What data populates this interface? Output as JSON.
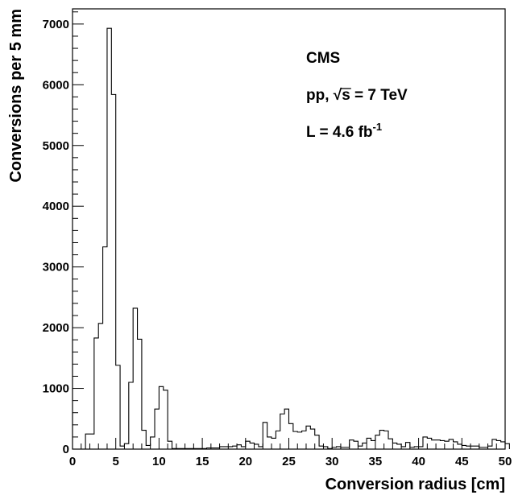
{
  "chart_data": {
    "type": "histogram",
    "xlabel": "Conversion radius [cm]",
    "ylabel": "Conversions per 5 mm",
    "xlim": [
      0,
      50
    ],
    "ylim": [
      0,
      7250
    ],
    "bin_width": 0.5,
    "x_ticks": [
      0,
      5,
      10,
      15,
      20,
      25,
      30,
      35,
      40,
      45,
      50
    ],
    "y_ticks": [
      0,
      1000,
      2000,
      3000,
      4000,
      5000,
      6000,
      7000
    ],
    "grid": false,
    "annotations": {
      "experiment": "CMS",
      "process_prefix": "pp, ",
      "sqrt_s_symbol": "√s",
      "energy": " = 7 TeV",
      "luminosity_prefix": "L = 4.6 fb",
      "luminosity_exponent": "-1"
    },
    "bin_edges_start": 1.5,
    "values": [
      250,
      250,
      1830,
      2070,
      3330,
      6930,
      5840,
      1380,
      50,
      90,
      1100,
      2320,
      1810,
      310,
      60,
      200,
      660,
      1030,
      970,
      130,
      10,
      10,
      10,
      10,
      10,
      10,
      10,
      10,
      20,
      20,
      20,
      40,
      40,
      40,
      50,
      70,
      40,
      130,
      100,
      80,
      40,
      440,
      200,
      180,
      300,
      580,
      660,
      420,
      290,
      280,
      300,
      380,
      330,
      230,
      50,
      40,
      10,
      30,
      40,
      30,
      30,
      150,
      130,
      50,
      100,
      180,
      140,
      230,
      310,
      300,
      170,
      100,
      80,
      40,
      110,
      30,
      40,
      40,
      200,
      180,
      150,
      150,
      140,
      130,
      160,
      120,
      80,
      60,
      50,
      50,
      50,
      30,
      30,
      50,
      160,
      140,
      120,
      90
    ]
  }
}
